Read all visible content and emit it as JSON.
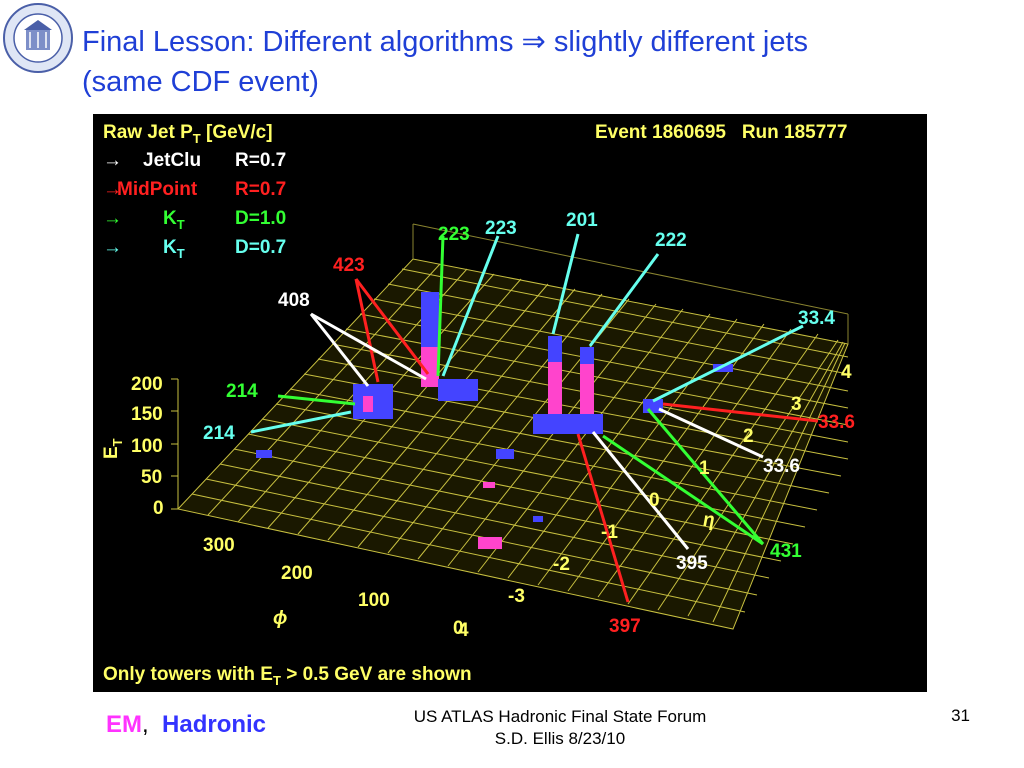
{
  "slide": {
    "title_line1": "Final Lesson: Different algorithms ⇒ slightly different jets",
    "title_line2": "(same CDF event)",
    "footer_line1": "US ATLAS Hadronic Final State Forum",
    "footer_line2": "S.D. Ellis 8/23/10",
    "page_number": "31",
    "em_label": "EM",
    "separator": ",",
    "hadronic_label": "Hadronic",
    "seal_icon": "university-seal-icon"
  },
  "figure": {
    "header_left": "Raw Jet P",
    "header_left_sub": "T",
    "header_left_unit": " [GeV/c]",
    "header_right": "Event 1860695   Run 185777",
    "legend": [
      {
        "arrow": "→",
        "algo": "JetClu",
        "sub": "",
        "param": "R=0.7",
        "color": "#ffffff"
      },
      {
        "arrow": "→",
        "algo": "MidPoint",
        "sub": "",
        "param": "R=0.7",
        "color": "#ff2020"
      },
      {
        "arrow": "→",
        "algo": "K",
        "sub": "T",
        "param": "D=1.0",
        "color": "#33ff33"
      },
      {
        "arrow": "→",
        "algo": "K",
        "sub": "T",
        "param": "D=0.7",
        "color": "#66ffee"
      }
    ],
    "footnote": "Only towers with E",
    "footnote_sub": "T",
    "footnote_rest": " > 0.5 GeV are shown",
    "et_axis_label": "E",
    "et_axis_sub": "T",
    "et_ticks": [
      "200",
      "150",
      "100",
      "50",
      "0"
    ],
    "phi_axis_label": "ϕ",
    "phi_ticks": [
      "300",
      "200",
      "100",
      "0"
    ],
    "eta_axis_label": "η",
    "eta_ticks": [
      "4",
      "3",
      "2",
      "1",
      "0",
      "-1",
      "-2",
      "-3",
      "4"
    ],
    "jet_labels": [
      {
        "text": "223",
        "color": "#33ff33"
      },
      {
        "text": "223",
        "color": "#66ffee"
      },
      {
        "text": "201",
        "color": "#66ffee"
      },
      {
        "text": "222",
        "color": "#66ffee"
      },
      {
        "text": "423",
        "color": "#ff2020"
      },
      {
        "text": "408",
        "color": "#ffffff"
      },
      {
        "text": "214",
        "color": "#33ff33"
      },
      {
        "text": "214",
        "color": "#66ffee"
      },
      {
        "text": "33.4",
        "color": "#66ffee"
      },
      {
        "text": "33.6",
        "color": "#ff2020"
      },
      {
        "text": "33.6",
        "color": "#ffffff"
      },
      {
        "text": "431",
        "color": "#33ff33"
      },
      {
        "text": "395",
        "color": "#ffffff"
      },
      {
        "text": "397",
        "color": "#ff2020"
      }
    ],
    "colors": {
      "grid": "#c8c040",
      "em": "#ff44cc",
      "hadronic": "#4444ff",
      "text": "#ffff66"
    }
  }
}
